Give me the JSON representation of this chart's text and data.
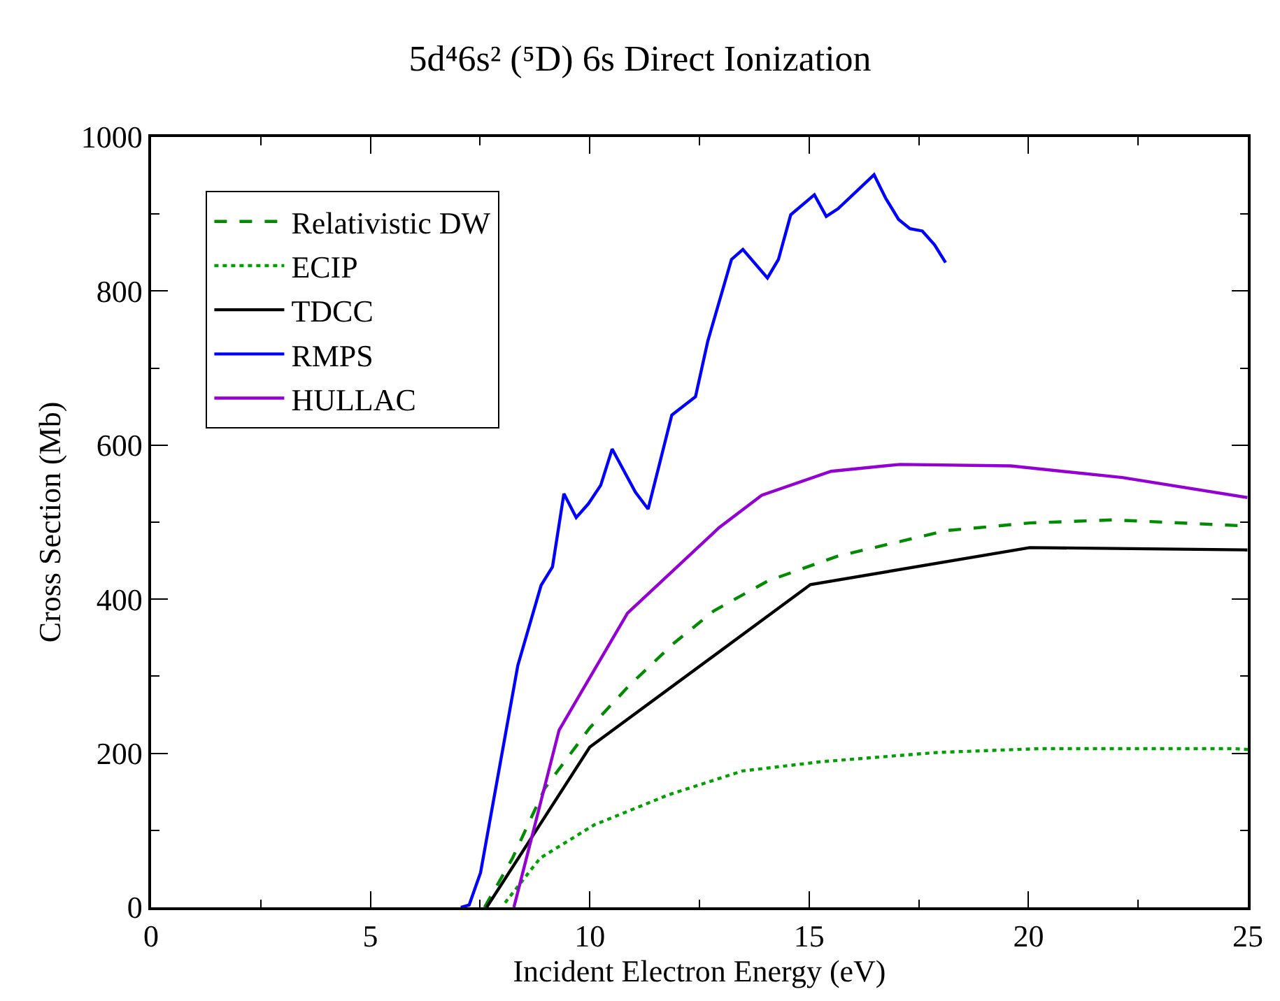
{
  "chart_data": {
    "type": "line",
    "title": "5d⁴6s² (⁵D) 6s Direct Ionization",
    "xlabel": "Incident Electron Energy (eV)",
    "ylabel": "Cross Section (Mb)",
    "xlim": [
      0,
      25
    ],
    "ylim": [
      0,
      1000
    ],
    "xticks": [
      0,
      {
        "value": 2.5,
        "label": null
      },
      5,
      {
        "value": 7.5,
        "label": null
      },
      10,
      {
        "value": 12.5,
        "label": null
      },
      15,
      {
        "value": 17.5,
        "label": null
      },
      20,
      {
        "value": 22.5,
        "label": null
      },
      25
    ],
    "yticks": [
      0,
      {
        "value": 100,
        "label": null
      },
      200,
      {
        "value": 300,
        "label": null
      },
      400,
      {
        "value": 500,
        "label": null
      },
      600,
      {
        "value": 700,
        "label": null
      },
      800,
      {
        "value": 900,
        "label": null
      },
      1000
    ],
    "legend": "top left",
    "marker": "none",
    "series": [
      {
        "name": "Relativistic DW",
        "color": "#008b00",
        "line_style": "dashed",
        "x": [
          7.6,
          8.24,
          8.98,
          10.0,
          10.9,
          11.92,
          12.83,
          14.07,
          15.66,
          18.12,
          20.03,
          21.93,
          24.99
        ],
        "values": [
          0,
          64,
          155,
          233,
          288,
          343,
          385,
          424,
          456,
          489,
          499,
          503,
          495
        ]
      },
      {
        "name": "ECIP",
        "color": "#00a000",
        "line_style": "dotted",
        "x": [
          8.07,
          8.87,
          10.1,
          11.79,
          13.48,
          15.27,
          17.91,
          20.24,
          24.67,
          25
        ],
        "values": [
          6,
          64,
          107,
          146,
          177,
          189,
          201,
          206,
          206,
          205
        ]
      },
      {
        "name": "TDCC",
        "color": "#000000",
        "line_style": "solid",
        "x": [
          7.65,
          10.0,
          15.03,
          20.03,
          24.99
        ],
        "values": [
          0,
          208,
          419,
          467,
          464
        ]
      },
      {
        "name": "RMPS",
        "color": "#0000ff",
        "line_style": "solid",
        "x": [
          7.06,
          7.25,
          7.51,
          8.36,
          8.89,
          9.15,
          9.41,
          9.69,
          9.97,
          10.25,
          10.51,
          11.04,
          11.33,
          11.87,
          12.41,
          12.69,
          13.23,
          13.49,
          14.05,
          14.3,
          14.58,
          15.12,
          15.39,
          15.66,
          16.48,
          16.75,
          17.04,
          17.3,
          17.58,
          17.86,
          18.11
        ],
        "values": [
          0,
          3,
          45,
          314,
          418,
          442,
          537,
          506,
          524,
          548,
          595,
          539,
          517,
          639,
          663,
          735,
          841,
          854,
          817,
          841,
          899,
          925,
          897,
          907,
          951,
          920,
          893,
          881,
          878,
          860,
          837
        ]
      },
      {
        "name": "HULLAC",
        "color": "#9400d3",
        "line_style": "solid",
        "x": [
          8.27,
          9.3,
          10.86,
          12.95,
          13.92,
          15.5,
          17.07,
          19.6,
          22.14,
          24.99
        ],
        "values": [
          0,
          230,
          382,
          493,
          535,
          566,
          575,
          573,
          558,
          532
        ]
      }
    ]
  }
}
